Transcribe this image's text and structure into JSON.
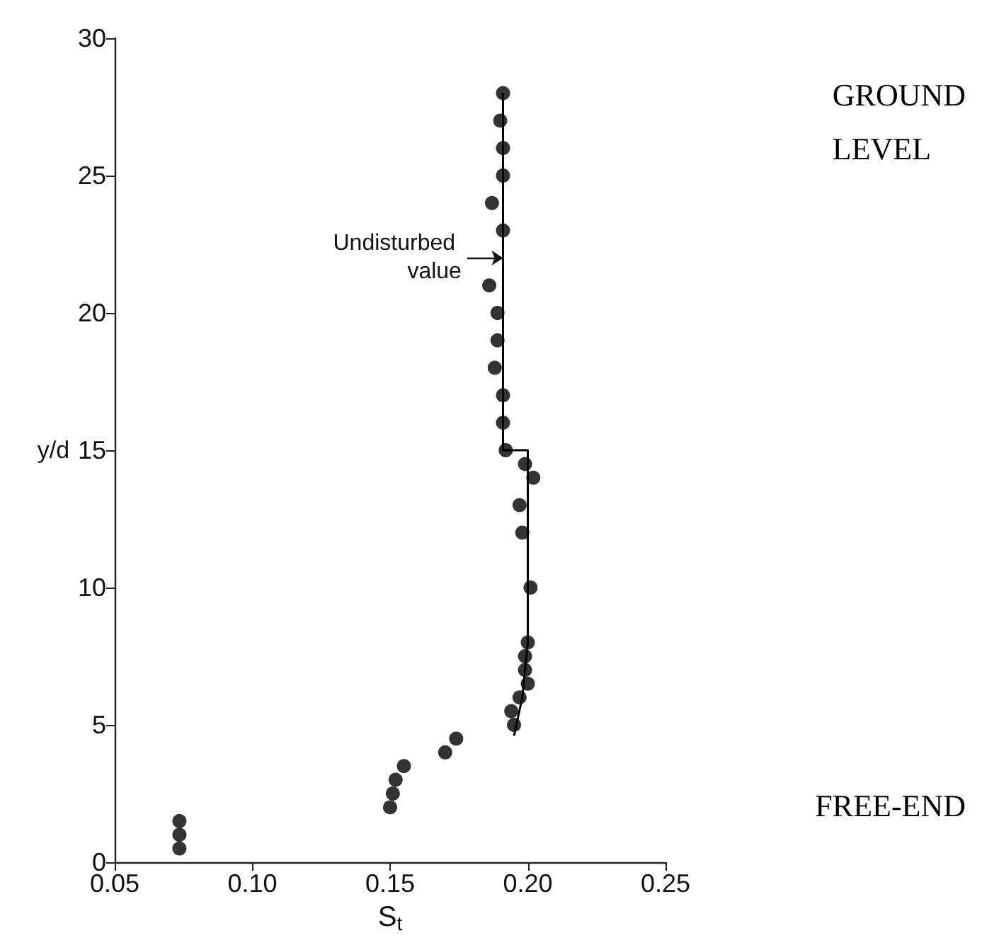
{
  "chart_data": {
    "type": "scatter",
    "xlabel": "S$_{t}$",
    "ylabel": "y/d",
    "xlim": [
      0.05,
      0.25
    ],
    "xticks": [
      {
        "value": 0.05,
        "label": "0.05"
      },
      {
        "value": 0.1,
        "label": "0.10"
      },
      {
        "value": 0.15,
        "label": "0.15"
      },
      {
        "value": 0.2,
        "label": "0.20"
      },
      {
        "value": 0.25,
        "label": "0.25"
      }
    ],
    "ylim": [
      0,
      30
    ],
    "yticks": [
      0,
      5,
      10,
      15,
      20,
      25,
      30
    ],
    "grid": false,
    "marker": "circle",
    "annotations": [
      {
        "text": "Undisturbed value",
        "x": 0.191,
        "y": 22
      },
      "GROUND LEVEL",
      "FREE-END"
    ],
    "series": [
      {
        "color": "#000000",
        "x": [
          0.191,
          0.19,
          0.191,
          0.191,
          0.187,
          0.191,
          0.186,
          0.189,
          0.189,
          0.188,
          0.191,
          0.191,
          0.192,
          0.199,
          0.202,
          0.197,
          0.198,
          0.201,
          0.2,
          0.199,
          0.199,
          0.2,
          0.197,
          0.194,
          0.195,
          0.174,
          0.17,
          0.155,
          0.152,
          0.151,
          0.15,
          0.0735,
          0.0735,
          0.0735
        ],
        "values": [
          28,
          27,
          26,
          25,
          24,
          23,
          21,
          20,
          19,
          18,
          17,
          16,
          15,
          14.5,
          14,
          13,
          12,
          10,
          8,
          7.5,
          7,
          6.5,
          6,
          5.5,
          5,
          4.5,
          4,
          3.5,
          3,
          2.5,
          2,
          1.5,
          1,
          0.5
        ]
      },
      {
        "type": "line",
        "color": "#000000",
        "marker": "none",
        "x": [
          0.191,
          0.191,
          0.2,
          0.2,
          0.198,
          0.195
        ],
        "values": [
          28,
          15,
          15,
          8,
          6,
          4.6
        ]
      }
    ]
  }
}
